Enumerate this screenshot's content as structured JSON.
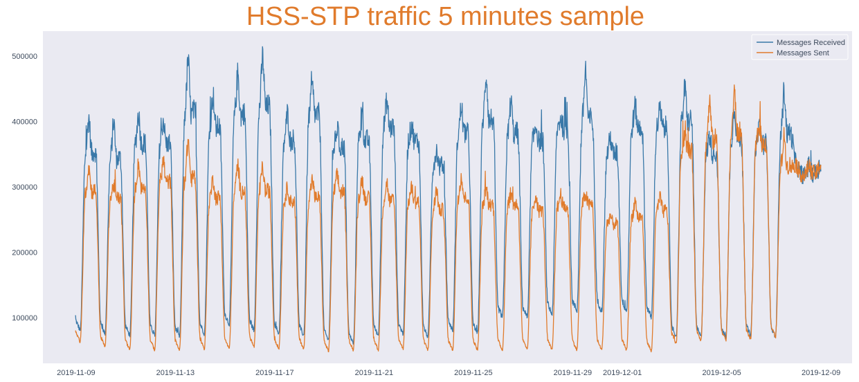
{
  "chart_data": {
    "type": "line",
    "title": "HSS-STP traffic 5 minutes sample",
    "xlabel": "",
    "ylabel": "",
    "xlim": [
      "2019-11-07T16:00",
      "2019-12-10T06:00"
    ],
    "ylim": [
      30000,
      538000
    ],
    "grid": false,
    "legend_position": "top-right",
    "x_ticks": [
      "2019-11-09",
      "2019-11-13",
      "2019-11-17",
      "2019-11-21",
      "2019-11-25",
      "2019-11-29",
      "2019-12-01",
      "2019-12-05",
      "2019-12-09"
    ],
    "y_ticks": [
      100000,
      200000,
      300000,
      400000,
      500000
    ],
    "x_start": "2019-11-08T23:30",
    "x_end": "2019-12-09T00:00",
    "series": [
      {
        "name": "Messages Received",
        "color": "#3978a8",
        "daily_min": [
          80000,
          75000,
          72000,
          72000,
          70000,
          75000,
          90000,
          80000,
          75000,
          72000,
          65000,
          60000,
          72000,
          75000,
          70000,
          80000,
          75000,
          100000,
          100000,
          105000,
          110000,
          110000,
          110000,
          100000,
          70000,
          70000,
          68000,
          72000,
          70000,
          320000
        ],
        "daily_peak": [
          425000,
          420000,
          430000,
          420000,
          520000,
          460000,
          495000,
          525000,
          430000,
          470000,
          405000,
          420000,
          450000,
          410000,
          370000,
          440000,
          495000,
          450000,
          410000,
          420000,
          505000,
          390000,
          440000,
          435000,
          470000,
          395000,
          440000,
          415000,
          470000,
          345000
        ],
        "daily_plateau": [
          360000,
          350000,
          375000,
          375000,
          420000,
          400000,
          420000,
          430000,
          380000,
          420000,
          370000,
          380000,
          400000,
          380000,
          340000,
          390000,
          410000,
          390000,
          380000,
          400000,
          410000,
          360000,
          400000,
          400000,
          410000,
          360000,
          380000,
          375000,
          390000,
          330000
        ]
      },
      {
        "name": "Messages Sent",
        "color": "#e07b2c",
        "daily_min": [
          62000,
          55000,
          50000,
          50000,
          50000,
          52000,
          52000,
          55000,
          52000,
          52000,
          48000,
          50000,
          50000,
          52000,
          50000,
          50000,
          50000,
          50000,
          50000,
          50000,
          50000,
          50000,
          50000,
          48000,
          60000,
          65000,
          65000,
          66000,
          70000,
          320000
        ],
        "daily_peak": [
          345000,
          315000,
          350000,
          355000,
          390000,
          325000,
          350000,
          345000,
          310000,
          325000,
          330000,
          325000,
          320000,
          310000,
          310000,
          330000,
          310000,
          300000,
          300000,
          300000,
          300000,
          265000,
          290000,
          295000,
          395000,
          450000,
          465000,
          410000,
          395000,
          345000
        ],
        "daily_plateau": [
          300000,
          290000,
          305000,
          315000,
          320000,
          290000,
          300000,
          300000,
          285000,
          290000,
          300000,
          290000,
          285000,
          285000,
          270000,
          290000,
          280000,
          280000,
          270000,
          275000,
          280000,
          250000,
          260000,
          270000,
          365000,
          380000,
          390000,
          375000,
          340000,
          330000
        ]
      }
    ]
  },
  "colors": {
    "plot_bg": "#eaeaf2",
    "title_color": "#e07b2c",
    "tick_color": "#3d4a5c",
    "figure_bg": "#ffffff"
  }
}
